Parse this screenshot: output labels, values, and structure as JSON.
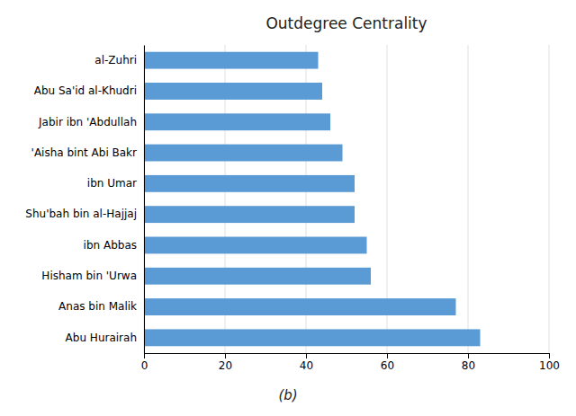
{
  "chart_data": {
    "type": "bar",
    "orientation": "horizontal",
    "title": "Outdegree Centrality",
    "subtitle": "(b)",
    "categories": [
      "Abu Hurairah",
      "Anas bin Malik",
      "Hisham bin 'Urwa",
      "ibn Abbas",
      "Shu'bah bin al-Hajjaj",
      "ibn Umar",
      "'Aisha bint Abi Bakr",
      "Jabir ibn 'Abdullah",
      "Abu Sa'id al-Khudri",
      "al-Zuhri"
    ],
    "values": [
      83,
      77,
      56,
      55,
      52,
      52,
      49,
      46,
      44,
      43
    ],
    "color": "#5B9BD5",
    "xlim": [
      0,
      100
    ],
    "xticks": [
      0,
      20,
      40,
      60,
      80,
      100
    ],
    "grid": true
  }
}
